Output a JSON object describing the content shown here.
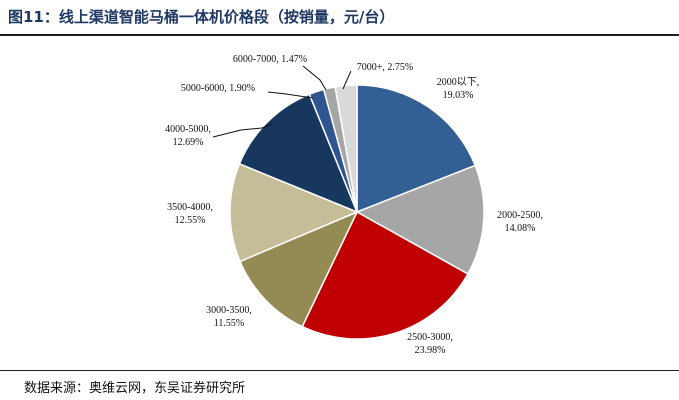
{
  "figure": {
    "title": "图11：线上渠道智能马桶一体机价格段（按销量，元/台）",
    "source": "数据来源：奥维云网，东吴证券研究所"
  },
  "chart_data": {
    "type": "pie",
    "title": "",
    "slices": [
      {
        "label": "2000以下",
        "value": 19.03,
        "display": "19.03%",
        "color": "#335f94"
      },
      {
        "label": "2000-2500",
        "value": 14.08,
        "display": "14.08%",
        "color": "#a6a6a6"
      },
      {
        "label": "2500-3000",
        "value": 23.98,
        "display": "23.98%",
        "color": "#c00000"
      },
      {
        "label": "3000-3500",
        "value": 11.55,
        "display": "11.55%",
        "color": "#948a54"
      },
      {
        "label": "3500-4000",
        "value": 12.55,
        "display": "12.55%",
        "color": "#c4bd97"
      },
      {
        "label": "4000-5000",
        "value": 12.69,
        "display": "12.69%",
        "color": "#17375e"
      },
      {
        "label": "5000-6000",
        "value": 1.9,
        "display": "1.90%",
        "color": "#2e5590"
      },
      {
        "label": "6000-7000",
        "value": 1.47,
        "display": "1.47%",
        "color": "#a6a6a6"
      },
      {
        "label": "7000+",
        "value": 2.75,
        "display": "2.75%",
        "color": "#d9d9d9"
      }
    ]
  }
}
